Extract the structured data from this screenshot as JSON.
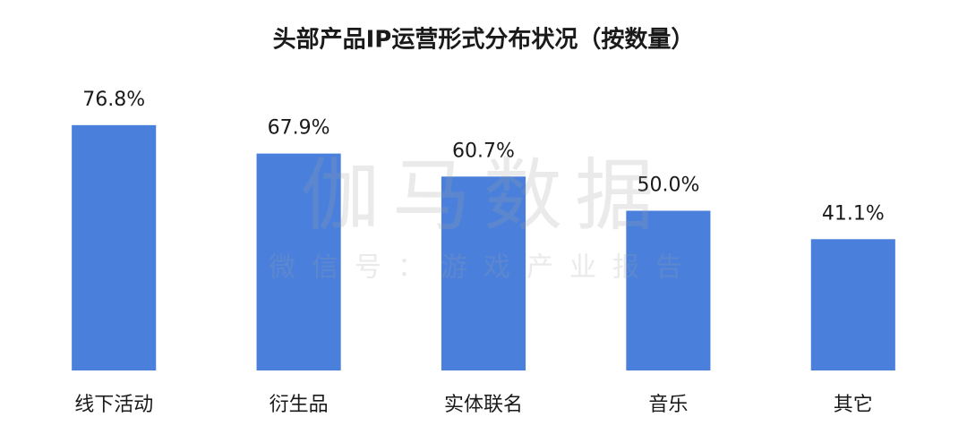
{
  "chart_data": {
    "type": "bar",
    "title": "头部产品IP运营形式分布状况（按数量）",
    "categories": [
      "线下活动",
      "衍生品",
      "实体联名",
      "音乐",
      "其它"
    ],
    "values": [
      76.8,
      67.9,
      60.7,
      50.0,
      41.1
    ],
    "value_labels": [
      "76.8%",
      "67.9%",
      "60.7%",
      "50.0%",
      "41.1%"
    ],
    "color": "#4a80dc",
    "ylim": [
      0,
      100
    ],
    "watermark": {
      "title": "伽马数据",
      "subtitle": "微信号：游戏产业报告"
    }
  }
}
